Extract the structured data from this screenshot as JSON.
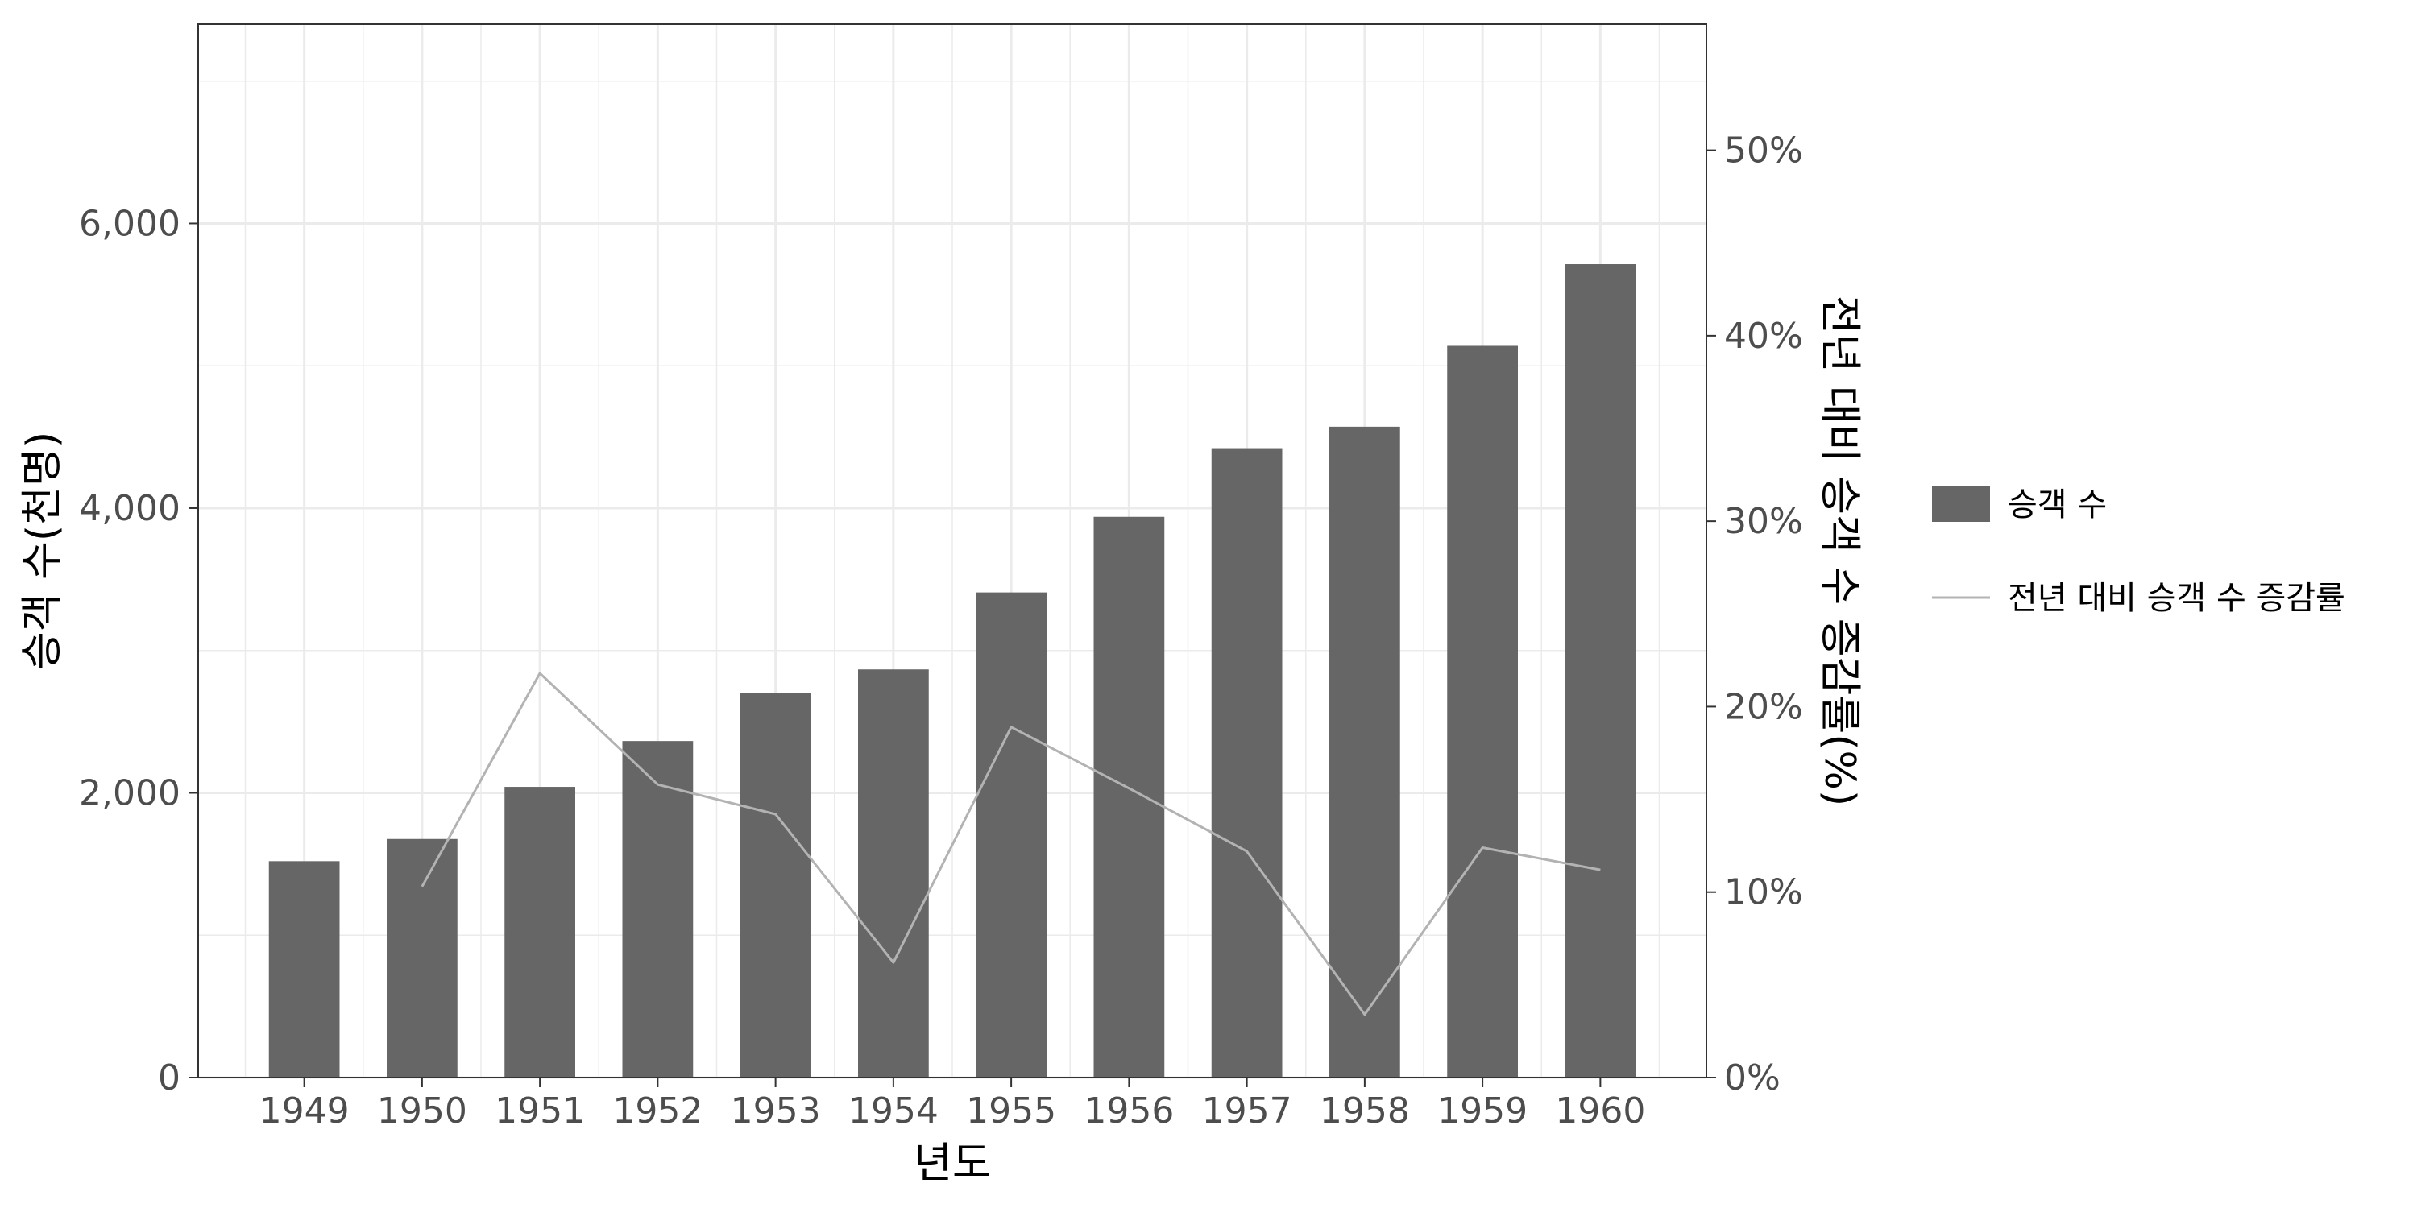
{
  "chart_data": {
    "type": "bar+line",
    "x": [
      "1949",
      "1950",
      "1951",
      "1952",
      "1953",
      "1954",
      "1955",
      "1956",
      "1957",
      "1958",
      "1959",
      "1960"
    ],
    "series": [
      {
        "name": "승객 수",
        "type": "bar",
        "axis": "left",
        "values": [
          1520,
          1676,
          2042,
          2364,
          2700,
          2867,
          3408,
          3939,
          4421,
          4572,
          5140,
          5714
        ]
      },
      {
        "name": "전년 대비 승객 수 증감률",
        "type": "line",
        "axis": "right",
        "values": [
          null,
          10.3,
          21.8,
          15.8,
          14.2,
          6.2,
          18.9,
          15.6,
          12.2,
          3.4,
          12.4,
          11.2
        ]
      }
    ],
    "xlabel": "년도",
    "ylabel": "승객 수(천명)",
    "y2label": "전년 대비 승객 수 증감률(%)",
    "ylim": [
      0,
      7400
    ],
    "y2lim": [
      0,
      56.8
    ],
    "yticks": [
      "0",
      "2,000",
      "4,000",
      "6,000"
    ],
    "yticks_values": [
      0,
      2000,
      4000,
      6000
    ],
    "y2ticks": [
      "0%",
      "10%",
      "20%",
      "30%",
      "40%",
      "50%"
    ],
    "y2ticks_values": [
      0,
      10,
      20,
      30,
      40,
      50
    ],
    "grid": true,
    "legend_position": "right",
    "colors": {
      "bar": "#666666",
      "line": "#b3b3b3",
      "grid": "#ebebeb",
      "panel_border": "#333333"
    }
  }
}
